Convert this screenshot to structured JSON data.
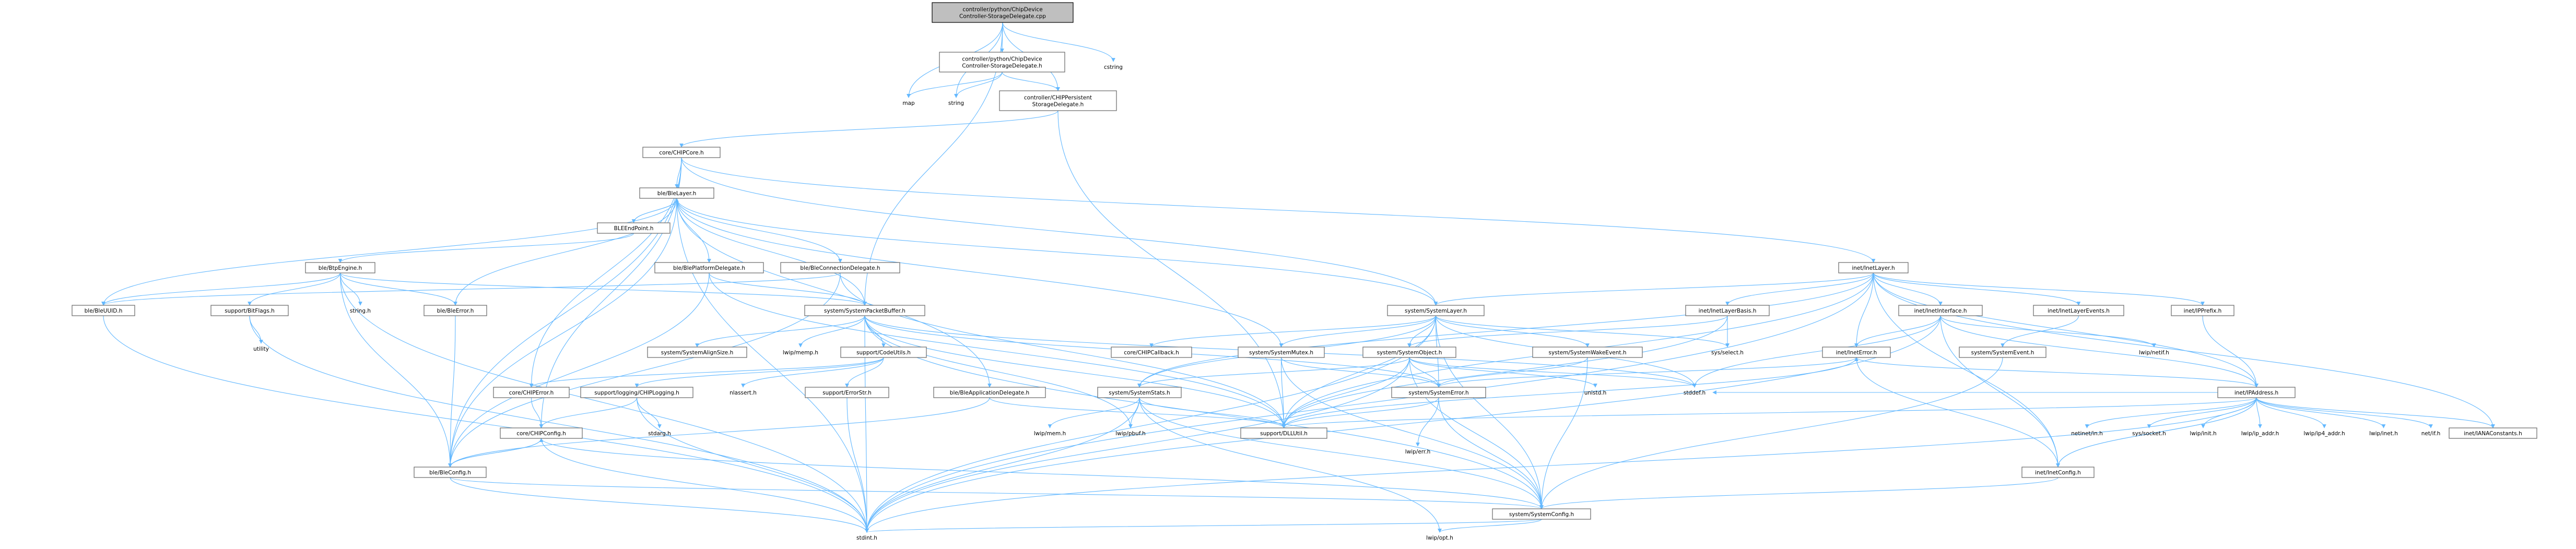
{
  "nodes": [
    {
      "id": "root",
      "lines": [
        "controller/python/ChipDevice",
        "Controller-StorageDelegate.cpp"
      ],
      "kind": "root"
    },
    {
      "id": "cstring",
      "lines": [
        "cstring"
      ],
      "kind": "plain"
    },
    {
      "id": "sdh",
      "lines": [
        "controller/python/ChipDevice",
        "Controller-StorageDelegate.h"
      ],
      "kind": "box"
    },
    {
      "id": "map",
      "lines": [
        "map"
      ],
      "kind": "plain"
    },
    {
      "id": "string",
      "lines": [
        "string"
      ],
      "kind": "plain"
    },
    {
      "id": "persist",
      "lines": [
        "controller/CHIPPersistent",
        "StorageDelegate.h"
      ],
      "kind": "box"
    },
    {
      "id": "chipcore",
      "lines": [
        "core/CHIPCore.h"
      ],
      "kind": "box"
    },
    {
      "id": "blelayer",
      "lines": [
        "ble/BleLayer.h"
      ],
      "kind": "box"
    },
    {
      "id": "bleendpoint",
      "lines": [
        "BLEEndPoint.h"
      ],
      "kind": "box"
    },
    {
      "id": "bleplat",
      "lines": [
        "ble/BlePlatformDelegate.h"
      ],
      "kind": "box"
    },
    {
      "id": "bleconn",
      "lines": [
        "ble/BleConnectionDelegate.h"
      ],
      "kind": "box"
    },
    {
      "id": "btpengine",
      "lines": [
        "ble/BtpEngine.h"
      ],
      "kind": "box"
    },
    {
      "id": "bleuuid",
      "lines": [
        "ble/BleUUID.h"
      ],
      "kind": "box"
    },
    {
      "id": "bitflags",
      "lines": [
        "support/BitFlags.h"
      ],
      "kind": "box"
    },
    {
      "id": "stringh",
      "lines": [
        "string.h"
      ],
      "kind": "plain"
    },
    {
      "id": "bleerror",
      "lines": [
        "ble/BleError.h"
      ],
      "kind": "box"
    },
    {
      "id": "utility",
      "lines": [
        "utility"
      ],
      "kind": "plain"
    },
    {
      "id": "spb",
      "lines": [
        "system/SystemPacketBuffer.h"
      ],
      "kind": "box"
    },
    {
      "id": "ssa",
      "lines": [
        "system/SystemAlignSize.h"
      ],
      "kind": "box"
    },
    {
      "id": "lwipmemp",
      "lines": [
        "lwip/memp.h"
      ],
      "kind": "plain"
    },
    {
      "id": "codeutils",
      "lines": [
        "support/CodeUtils.h"
      ],
      "kind": "box"
    },
    {
      "id": "chiperror",
      "lines": [
        "core/CHIPError.h"
      ],
      "kind": "box"
    },
    {
      "id": "logging",
      "lines": [
        "support/logging/CHIPLogging.h"
      ],
      "kind": "box"
    },
    {
      "id": "nlassert",
      "lines": [
        "nlassert.h"
      ],
      "kind": "plain"
    },
    {
      "id": "errorstr",
      "lines": [
        "support/ErrorStr.h"
      ],
      "kind": "box"
    },
    {
      "id": "stdarg",
      "lines": [
        "stdarg.h"
      ],
      "kind": "plain"
    },
    {
      "id": "chipconfig",
      "lines": [
        "core/CHIPConfig.h"
      ],
      "kind": "box"
    },
    {
      "id": "bleconfig",
      "lines": [
        "ble/BleConfig.h"
      ],
      "kind": "box"
    },
    {
      "id": "bleapp",
      "lines": [
        "ble/BleApplicationDelegate.h"
      ],
      "kind": "box"
    },
    {
      "id": "stdint",
      "lines": [
        "stdint.h"
      ],
      "kind": "plain"
    },
    {
      "id": "syslayer",
      "lines": [
        "system/SystemLayer.h"
      ],
      "kind": "box"
    },
    {
      "id": "callback",
      "lines": [
        "core/CHIPCallback.h"
      ],
      "kind": "box"
    },
    {
      "id": "mutex",
      "lines": [
        "system/SystemMutex.h"
      ],
      "kind": "box"
    },
    {
      "id": "sysobj",
      "lines": [
        "system/SystemObject.h"
      ],
      "kind": "box"
    },
    {
      "id": "wake",
      "lines": [
        "system/SystemWakeEvent.h"
      ],
      "kind": "box"
    },
    {
      "id": "stats",
      "lines": [
        "system/SystemStats.h"
      ],
      "kind": "box"
    },
    {
      "id": "syserror",
      "lines": [
        "system/SystemError.h"
      ],
      "kind": "box"
    },
    {
      "id": "dllutil",
      "lines": [
        "support/DLLUtil.h"
      ],
      "kind": "box"
    },
    {
      "id": "lwipmem",
      "lines": [
        "lwip/mem.h"
      ],
      "kind": "plain"
    },
    {
      "id": "lwippbuf",
      "lines": [
        "lwip/pbuf.h"
      ],
      "kind": "plain"
    },
    {
      "id": "lwiperr",
      "lines": [
        "lwip/err.h"
      ],
      "kind": "plain"
    },
    {
      "id": "sysconfig",
      "lines": [
        "system/SystemConfig.h"
      ],
      "kind": "box"
    },
    {
      "id": "lwipopt",
      "lines": [
        "lwip/opt.h"
      ],
      "kind": "plain"
    },
    {
      "id": "unistd",
      "lines": [
        "unistd.h"
      ],
      "kind": "plain"
    },
    {
      "id": "stddef",
      "lines": [
        "stddef.h"
      ],
      "kind": "plain"
    },
    {
      "id": "sysselect",
      "lines": [
        "sys/select.h"
      ],
      "kind": "plain"
    },
    {
      "id": "inetlayer",
      "lines": [
        "inet/InetLayer.h"
      ],
      "kind": "box"
    },
    {
      "id": "inetbasis",
      "lines": [
        "inet/InetLayerBasis.h"
      ],
      "kind": "box"
    },
    {
      "id": "inetiface",
      "lines": [
        "inet/InetInterface.h"
      ],
      "kind": "box"
    },
    {
      "id": "ineterror",
      "lines": [
        "inet/InetError.h"
      ],
      "kind": "box"
    },
    {
      "id": "inetevents",
      "lines": [
        "inet/InetLayerEvents.h"
      ],
      "kind": "box"
    },
    {
      "id": "sysevent",
      "lines": [
        "system/SystemEvent.h"
      ],
      "kind": "box"
    },
    {
      "id": "lwipnetif",
      "lines": [
        "lwip/netif.h"
      ],
      "kind": "plain"
    },
    {
      "id": "ipprefix",
      "lines": [
        "inet/IPPrefix.h"
      ],
      "kind": "box"
    },
    {
      "id": "ipaddr",
      "lines": [
        "inet/IPAddress.h"
      ],
      "kind": "box"
    },
    {
      "id": "netinet",
      "lines": [
        "netinet/in.h"
      ],
      "kind": "plain"
    },
    {
      "id": "syssocket",
      "lines": [
        "sys/socket.h"
      ],
      "kind": "plain"
    },
    {
      "id": "lwipinit",
      "lines": [
        "lwip/init.h"
      ],
      "kind": "plain"
    },
    {
      "id": "lwipipaddr",
      "lines": [
        "lwip/ip_addr.h"
      ],
      "kind": "plain"
    },
    {
      "id": "lwipip4",
      "lines": [
        "lwip/ip4_addr.h"
      ],
      "kind": "plain"
    },
    {
      "id": "lwipinet",
      "lines": [
        "lwip/inet.h"
      ],
      "kind": "plain"
    },
    {
      "id": "netif",
      "lines": [
        "net/if.h"
      ],
      "kind": "plain"
    },
    {
      "id": "iana",
      "lines": [
        "inet/IANAConstants.h"
      ],
      "kind": "box"
    },
    {
      "id": "inetconfig",
      "lines": [
        "inet/InetConfig.h"
      ],
      "kind": "box"
    }
  ],
  "edges": [
    [
      "root",
      "cstring"
    ],
    [
      "root",
      "sdh"
    ],
    [
      "root",
      "map"
    ],
    [
      "root",
      "string"
    ],
    [
      "root",
      "persist"
    ],
    [
      "root",
      "spb"
    ],
    [
      "sdh",
      "map"
    ],
    [
      "sdh",
      "string"
    ],
    [
      "sdh",
      "persist"
    ],
    [
      "persist",
      "chipcore"
    ],
    [
      "persist",
      "dllutil"
    ],
    [
      "chipcore",
      "blelayer"
    ],
    [
      "chipcore",
      "chiperror"
    ],
    [
      "chipcore",
      "chipconfig"
    ],
    [
      "chipcore",
      "syslayer"
    ],
    [
      "chipcore",
      "inetlayer"
    ],
    [
      "chipcore",
      "bleconfig"
    ],
    [
      "blelayer",
      "bleendpoint"
    ],
    [
      "blelayer",
      "bleplat"
    ],
    [
      "blelayer",
      "bleconn"
    ],
    [
      "blelayer",
      "bleapp"
    ],
    [
      "blelayer",
      "bleuuid"
    ],
    [
      "blelayer",
      "bleerror"
    ],
    [
      "blelayer",
      "bleconfig"
    ],
    [
      "blelayer",
      "syslayer"
    ],
    [
      "blelayer",
      "spb"
    ],
    [
      "blelayer",
      "stdint"
    ],
    [
      "blelayer",
      "mutex"
    ],
    [
      "bleendpoint",
      "blelayer"
    ],
    [
      "bleendpoint",
      "btpengine"
    ],
    [
      "bleplat",
      "spb"
    ],
    [
      "bleplat",
      "bleconfig"
    ],
    [
      "bleplat",
      "dllutil"
    ],
    [
      "bleconn",
      "bleconfig"
    ],
    [
      "bleconn",
      "dllutil"
    ],
    [
      "bleconn",
      "bleuuid"
    ],
    [
      "btpengine",
      "bleuuid"
    ],
    [
      "btpengine",
      "bitflags"
    ],
    [
      "btpengine",
      "stringh"
    ],
    [
      "btpengine",
      "bleerror"
    ],
    [
      "btpengine",
      "spb"
    ],
    [
      "btpengine",
      "bleconfig"
    ],
    [
      "btpengine",
      "stdint"
    ],
    [
      "bleuuid",
      "stdint"
    ],
    [
      "bitflags",
      "utility"
    ],
    [
      "bitflags",
      "stdint"
    ],
    [
      "bleerror",
      "bleconfig"
    ],
    [
      "spb",
      "ssa"
    ],
    [
      "spb",
      "lwipmemp"
    ],
    [
      "spb",
      "codeutils"
    ],
    [
      "spb",
      "stddef"
    ],
    [
      "spb",
      "dllutil"
    ],
    [
      "spb",
      "sysconfig"
    ],
    [
      "spb",
      "lwippbuf"
    ],
    [
      "spb",
      "syserror"
    ],
    [
      "spb",
      "stdint"
    ],
    [
      "codeutils",
      "chiperror"
    ],
    [
      "codeutils",
      "logging"
    ],
    [
      "codeutils",
      "nlassert"
    ],
    [
      "codeutils",
      "errorstr"
    ],
    [
      "chiperror",
      "chipconfig"
    ],
    [
      "logging",
      "chipconfig"
    ],
    [
      "logging",
      "stdarg"
    ],
    [
      "logging",
      "stdint"
    ],
    [
      "errorstr",
      "stdint"
    ],
    [
      "chipconfig",
      "bleconfig"
    ],
    [
      "chipconfig",
      "stdint"
    ],
    [
      "chipconfig",
      "sysconfig"
    ],
    [
      "bleconfig",
      "chipconfig"
    ],
    [
      "bleconfig",
      "stdint"
    ],
    [
      "bleconfig",
      "sysconfig"
    ],
    [
      "bleapp",
      "bleconfig"
    ],
    [
      "bleapp",
      "dllutil"
    ],
    [
      "syslayer",
      "callback"
    ],
    [
      "syslayer",
      "mutex"
    ],
    [
      "syslayer",
      "sysobj"
    ],
    [
      "syslayer",
      "wake"
    ],
    [
      "syslayer",
      "stats"
    ],
    [
      "syslayer",
      "syserror"
    ],
    [
      "syslayer",
      "sysconfig"
    ],
    [
      "syslayer",
      "dllutil"
    ],
    [
      "syslayer",
      "stdint"
    ],
    [
      "syslayer",
      "sysselect"
    ],
    [
      "syslayer",
      "stddef"
    ],
    [
      "mutex",
      "syserror"
    ],
    [
      "mutex",
      "sysconfig"
    ],
    [
      "mutex",
      "dllutil"
    ],
    [
      "sysobj",
      "syserror"
    ],
    [
      "sysobj",
      "stats"
    ],
    [
      "sysobj",
      "sysconfig"
    ],
    [
      "sysobj",
      "dllutil"
    ],
    [
      "sysobj",
      "stdint"
    ],
    [
      "sysobj",
      "stddef"
    ],
    [
      "sysobj",
      "unistd"
    ],
    [
      "wake",
      "syserror"
    ],
    [
      "wake",
      "sysconfig"
    ],
    [
      "stats",
      "sysconfig"
    ],
    [
      "stats",
      "lwipmem"
    ],
    [
      "stats",
      "lwippbuf"
    ],
    [
      "stats",
      "lwipopt"
    ],
    [
      "stats",
      "dllutil"
    ],
    [
      "stats",
      "stdint"
    ],
    [
      "syserror",
      "lwiperr"
    ],
    [
      "syserror",
      "sysconfig"
    ],
    [
      "syserror",
      "dllutil"
    ],
    [
      "sysconfig",
      "lwipopt"
    ],
    [
      "sysconfig",
      "stdint"
    ],
    [
      "inetlayer",
      "syslayer"
    ],
    [
      "inetlayer",
      "inetbasis"
    ],
    [
      "inetlayer",
      "inetiface"
    ],
    [
      "inetlayer",
      "inetevents"
    ],
    [
      "inetlayer",
      "ipprefix"
    ],
    [
      "inetlayer",
      "ipaddr"
    ],
    [
      "inetlayer",
      "ineterror"
    ],
    [
      "inetlayer",
      "inetconfig"
    ],
    [
      "inetlayer",
      "stats"
    ],
    [
      "inetlayer",
      "dllutil"
    ],
    [
      "inetlayer",
      "stdint"
    ],
    [
      "inetlayer",
      "iana"
    ],
    [
      "inetbasis",
      "sysobj"
    ],
    [
      "inetbasis",
      "dllutil"
    ],
    [
      "inetbasis",
      "sysselect"
    ],
    [
      "inetiface",
      "ineterror"
    ],
    [
      "inetiface",
      "ipaddr"
    ],
    [
      "inetiface",
      "inetconfig"
    ],
    [
      "inetiface",
      "lwipnetif"
    ],
    [
      "inetiface",
      "stddef"
    ],
    [
      "inetiface",
      "stdint"
    ],
    [
      "ineterror",
      "syserror"
    ],
    [
      "ineterror",
      "inetconfig"
    ],
    [
      "ineterror",
      "dllutil"
    ],
    [
      "inetevents",
      "sysevent"
    ],
    [
      "sysevent",
      "sysconfig"
    ],
    [
      "ipprefix",
      "ipaddr"
    ],
    [
      "ipaddr",
      "netinet"
    ],
    [
      "ipaddr",
      "syssocket"
    ],
    [
      "ipaddr",
      "lwipinit"
    ],
    [
      "ipaddr",
      "lwipipaddr"
    ],
    [
      "ipaddr",
      "lwipip4"
    ],
    [
      "ipaddr",
      "lwipinet"
    ],
    [
      "ipaddr",
      "netif"
    ],
    [
      "ipaddr",
      "iana"
    ],
    [
      "ipaddr",
      "inetconfig"
    ],
    [
      "ipaddr",
      "inetconfig"
    ],
    [
      "ipaddr",
      "dllutil"
    ],
    [
      "ipaddr",
      "stddef"
    ],
    [
      "ipaddr",
      "stdint"
    ],
    [
      "ipaddr",
      "ineterror"
    ],
    [
      "inetconfig",
      "sysconfig"
    ]
  ]
}
